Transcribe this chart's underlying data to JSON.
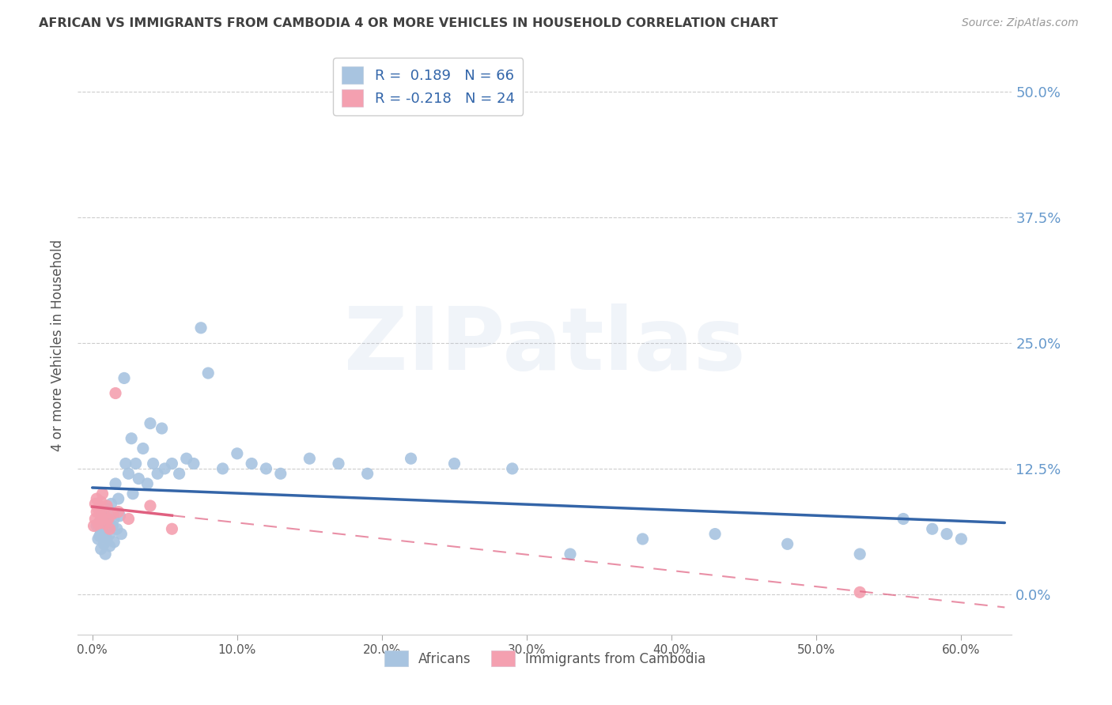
{
  "title": "AFRICAN VS IMMIGRANTS FROM CAMBODIA 4 OR MORE VEHICLES IN HOUSEHOLD CORRELATION CHART",
  "source": "Source: ZipAtlas.com",
  "ylabel": "4 or more Vehicles in Household",
  "african_color": "#a8c4e0",
  "cambodia_color": "#f4a0b0",
  "regression_african_color": "#3465a8",
  "regression_cambodia_color": "#e06080",
  "african_x": [
    0.003,
    0.004,
    0.005,
    0.005,
    0.006,
    0.006,
    0.007,
    0.007,
    0.008,
    0.008,
    0.009,
    0.009,
    0.01,
    0.01,
    0.011,
    0.012,
    0.012,
    0.013,
    0.014,
    0.015,
    0.015,
    0.016,
    0.017,
    0.018,
    0.019,
    0.02,
    0.022,
    0.023,
    0.025,
    0.027,
    0.028,
    0.03,
    0.032,
    0.035,
    0.038,
    0.04,
    0.042,
    0.045,
    0.048,
    0.05,
    0.055,
    0.06,
    0.065,
    0.07,
    0.075,
    0.08,
    0.09,
    0.1,
    0.11,
    0.12,
    0.13,
    0.15,
    0.17,
    0.19,
    0.22,
    0.25,
    0.29,
    0.33,
    0.38,
    0.43,
    0.48,
    0.53,
    0.56,
    0.58,
    0.59,
    0.6
  ],
  "african_y": [
    0.068,
    0.055,
    0.072,
    0.058,
    0.062,
    0.045,
    0.08,
    0.06,
    0.07,
    0.05,
    0.065,
    0.04,
    0.075,
    0.055,
    0.085,
    0.06,
    0.048,
    0.09,
    0.068,
    0.075,
    0.052,
    0.11,
    0.065,
    0.095,
    0.078,
    0.06,
    0.215,
    0.13,
    0.12,
    0.155,
    0.1,
    0.13,
    0.115,
    0.145,
    0.11,
    0.17,
    0.13,
    0.12,
    0.165,
    0.125,
    0.13,
    0.12,
    0.135,
    0.13,
    0.265,
    0.22,
    0.125,
    0.14,
    0.13,
    0.125,
    0.12,
    0.135,
    0.13,
    0.12,
    0.135,
    0.13,
    0.125,
    0.04,
    0.055,
    0.06,
    0.05,
    0.04,
    0.075,
    0.065,
    0.06,
    0.055
  ],
  "cambodia_x": [
    0.001,
    0.002,
    0.002,
    0.003,
    0.003,
    0.004,
    0.004,
    0.005,
    0.005,
    0.006,
    0.006,
    0.007,
    0.008,
    0.009,
    0.01,
    0.011,
    0.012,
    0.014,
    0.016,
    0.018,
    0.025,
    0.04,
    0.055,
    0.53
  ],
  "cambodia_y": [
    0.068,
    0.075,
    0.09,
    0.082,
    0.095,
    0.07,
    0.085,
    0.072,
    0.088,
    0.078,
    0.092,
    0.1,
    0.08,
    0.07,
    0.088,
    0.075,
    0.065,
    0.08,
    0.2,
    0.082,
    0.075,
    0.088,
    0.065,
    0.002
  ],
  "watermark": "ZIPatlas",
  "background_color": "#ffffff",
  "grid_color": "#cccccc",
  "title_color": "#404040",
  "axis_label_color": "#555555",
  "tick_color_right": "#6699cc",
  "xlim": [
    -0.01,
    0.635
  ],
  "ylim": [
    -0.04,
    0.535
  ],
  "xtick_vals": [
    0.0,
    0.1,
    0.2,
    0.3,
    0.4,
    0.5,
    0.6
  ],
  "ytick_vals": [
    0.0,
    0.125,
    0.25,
    0.375,
    0.5
  ],
  "ytick_labels": [
    "0.0%",
    "12.5%",
    "25.0%",
    "37.5%",
    "50.0%"
  ]
}
